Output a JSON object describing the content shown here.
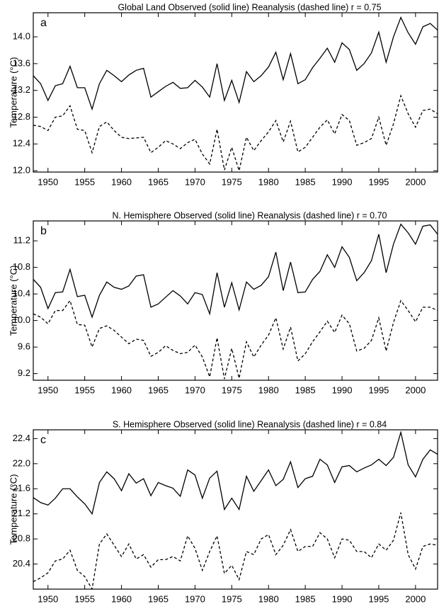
{
  "chart_data": [
    {
      "type": "line",
      "title": "Global Land   Observed (solid line)  Reanalysis (dashed line)  r =  0.75",
      "label": "a",
      "ylabel": "Temperature (°C)",
      "x": [
        1948,
        1949,
        1950,
        1951,
        1952,
        1953,
        1954,
        1955,
        1956,
        1957,
        1958,
        1959,
        1960,
        1961,
        1962,
        1963,
        1964,
        1965,
        1966,
        1967,
        1968,
        1969,
        1970,
        1971,
        1972,
        1973,
        1974,
        1975,
        1976,
        1977,
        1978,
        1979,
        1980,
        1981,
        1982,
        1983,
        1984,
        1985,
        1986,
        1987,
        1988,
        1989,
        1990,
        1991,
        1992,
        1993,
        1994,
        1995,
        1996,
        1997,
        1998,
        1999,
        2000,
        2001,
        2002,
        2003
      ],
      "xlim": [
        1948,
        2003
      ],
      "xticks": [
        1950,
        1955,
        1960,
        1965,
        1970,
        1975,
        1980,
        1985,
        1990,
        1995,
        2000
      ],
      "ylim": [
        11.98,
        14.36
      ],
      "yticks": [
        {
          "value": 12,
          "label": "12.0"
        },
        12.4,
        12.8,
        13.2,
        13.6,
        {
          "value": 14,
          "label": "14.0"
        }
      ],
      "series": [
        {
          "color": "#000000",
          "dashed": false,
          "values": [
            13.42,
            13.3,
            13.05,
            13.27,
            13.3,
            13.56,
            13.24,
            13.24,
            12.92,
            13.3,
            13.5,
            13.42,
            13.33,
            13.43,
            13.5,
            13.53,
            13.1,
            13.18,
            13.26,
            13.32,
            13.23,
            13.24,
            13.35,
            13.25,
            13.1,
            13.6,
            13.05,
            13.35,
            13.02,
            13.48,
            13.33,
            13.42,
            13.55,
            13.77,
            13.36,
            13.75,
            13.3,
            13.36,
            13.54,
            13.68,
            13.83,
            13.62,
            13.91,
            13.81,
            13.5,
            13.6,
            13.76,
            14.07,
            13.62,
            14.0,
            14.29,
            14.06,
            13.89,
            14.15,
            14.2,
            14.1
          ]
        },
        {
          "color": "#000000",
          "dashed": true,
          "values": [
            12.68,
            12.66,
            12.6,
            12.8,
            12.82,
            12.97,
            12.62,
            12.6,
            12.27,
            12.66,
            12.73,
            12.6,
            12.5,
            12.48,
            12.49,
            12.5,
            12.27,
            12.35,
            12.45,
            12.4,
            12.33,
            12.42,
            12.47,
            12.25,
            12.1,
            12.62,
            12.01,
            12.35,
            12.0,
            12.5,
            12.3,
            12.45,
            12.58,
            12.75,
            12.43,
            12.74,
            12.28,
            12.35,
            12.5,
            12.65,
            12.76,
            12.55,
            12.84,
            12.75,
            12.38,
            12.42,
            12.48,
            12.8,
            12.38,
            12.7,
            13.12,
            12.85,
            12.65,
            12.9,
            12.92,
            12.85
          ]
        }
      ]
    },
    {
      "type": "line",
      "title": "N. Hemisphere   Observed (solid line)  Reanalysis (dashed line)  r =  0.70",
      "label": "b",
      "ylabel": "Temperature (°C)",
      "x": [
        1948,
        1949,
        1950,
        1951,
        1952,
        1953,
        1954,
        1955,
        1956,
        1957,
        1958,
        1959,
        1960,
        1961,
        1962,
        1963,
        1964,
        1965,
        1966,
        1967,
        1968,
        1969,
        1970,
        1971,
        1972,
        1973,
        1974,
        1975,
        1976,
        1977,
        1978,
        1979,
        1980,
        1981,
        1982,
        1983,
        1984,
        1985,
        1986,
        1987,
        1988,
        1989,
        1990,
        1991,
        1992,
        1993,
        1994,
        1995,
        1996,
        1997,
        1998,
        1999,
        2000,
        2001,
        2002,
        2003
      ],
      "xlim": [
        1948,
        2003
      ],
      "xticks": [
        1950,
        1955,
        1960,
        1965,
        1970,
        1975,
        1980,
        1985,
        1990,
        1995,
        2000
      ],
      "ylim": [
        9.1,
        11.5
      ],
      "yticks": [
        9.2,
        9.6,
        {
          "value": 10,
          "label": "10.0"
        },
        10.4,
        10.8,
        11.2
      ],
      "series": [
        {
          "color": "#000000",
          "dashed": false,
          "values": [
            10.62,
            10.5,
            10.18,
            10.42,
            10.43,
            10.77,
            10.36,
            10.38,
            10.05,
            10.38,
            10.58,
            10.5,
            10.47,
            10.52,
            10.67,
            10.69,
            10.2,
            10.25,
            10.35,
            10.45,
            10.37,
            10.25,
            10.42,
            10.39,
            10.1,
            10.72,
            10.2,
            10.57,
            10.16,
            10.58,
            10.47,
            10.53,
            10.66,
            11.03,
            10.45,
            10.88,
            10.42,
            10.43,
            10.62,
            10.74,
            10.99,
            10.8,
            11.11,
            10.95,
            10.6,
            10.72,
            10.9,
            11.3,
            10.72,
            11.15,
            11.45,
            11.32,
            11.15,
            11.42,
            11.44,
            11.3
          ]
        },
        {
          "color": "#000000",
          "dashed": true,
          "values": [
            10.1,
            10.05,
            9.95,
            10.15,
            10.15,
            10.3,
            9.94,
            9.93,
            9.6,
            9.88,
            9.92,
            9.85,
            9.75,
            9.65,
            9.72,
            9.7,
            9.46,
            9.52,
            9.62,
            9.55,
            9.5,
            9.52,
            9.63,
            9.45,
            9.15,
            9.74,
            9.12,
            9.58,
            9.13,
            9.68,
            9.45,
            9.63,
            9.78,
            10.04,
            9.57,
            9.9,
            9.39,
            9.5,
            9.68,
            9.83,
            9.99,
            9.82,
            10.08,
            9.95,
            9.54,
            9.58,
            9.7,
            10.04,
            9.54,
            9.97,
            10.3,
            10.15,
            9.98,
            10.2,
            10.2,
            10.15
          ]
        }
      ]
    },
    {
      "type": "line",
      "title": "S. Hemisphere   Observed (solid line)  Reanalysis (dashed line)  r =  0.84",
      "label": "c",
      "ylabel": "Temperature (°C)",
      "x": [
        1948,
        1949,
        1950,
        1951,
        1952,
        1953,
        1954,
        1955,
        1956,
        1957,
        1958,
        1959,
        1960,
        1961,
        1962,
        1963,
        1964,
        1965,
        1966,
        1967,
        1968,
        1969,
        1970,
        1971,
        1972,
        1973,
        1974,
        1975,
        1976,
        1977,
        1978,
        1979,
        1980,
        1981,
        1982,
        1983,
        1984,
        1985,
        1986,
        1987,
        1988,
        1989,
        1990,
        1991,
        1992,
        1993,
        1994,
        1995,
        1996,
        1997,
        1998,
        1999,
        2000,
        2001,
        2002,
        2003
      ],
      "xlim": [
        1948,
        2003
      ],
      "xticks": [
        1950,
        1955,
        1960,
        1965,
        1970,
        1975,
        1980,
        1985,
        1990,
        1995,
        2000
      ],
      "ylim": [
        20.0,
        22.54
      ],
      "yticks": [
        20.4,
        20.8,
        21.2,
        21.6,
        {
          "value": 22,
          "label": "22.0"
        },
        22.4
      ],
      "series": [
        {
          "color": "#000000",
          "dashed": false,
          "values": [
            21.46,
            21.38,
            21.34,
            21.45,
            21.6,
            21.6,
            21.47,
            21.36,
            21.2,
            21.7,
            21.87,
            21.76,
            21.57,
            21.84,
            21.69,
            21.76,
            21.49,
            21.7,
            21.65,
            21.61,
            21.48,
            21.9,
            21.82,
            21.45,
            21.77,
            21.88,
            21.27,
            21.45,
            21.27,
            21.8,
            21.56,
            21.73,
            21.9,
            21.65,
            21.75,
            22.03,
            21.62,
            21.76,
            21.8,
            22.07,
            21.98,
            21.7,
            21.95,
            21.97,
            21.87,
            21.93,
            21.98,
            22.07,
            21.97,
            22.1,
            22.5,
            21.98,
            21.79,
            22.07,
            22.22,
            22.15
          ]
        },
        {
          "color": "#000000",
          "dashed": true,
          "values": [
            20.12,
            20.18,
            20.26,
            20.45,
            20.48,
            20.62,
            20.3,
            20.2,
            20.0,
            20.72,
            20.88,
            20.7,
            20.52,
            20.72,
            20.48,
            20.55,
            20.35,
            20.47,
            20.47,
            20.52,
            20.45,
            20.85,
            20.65,
            20.3,
            20.6,
            20.85,
            20.25,
            20.38,
            20.15,
            20.6,
            20.55,
            20.8,
            20.87,
            20.55,
            20.7,
            20.95,
            20.6,
            20.68,
            20.68,
            20.9,
            20.8,
            20.5,
            20.8,
            20.78,
            20.6,
            20.6,
            20.5,
            20.72,
            20.62,
            20.78,
            21.22,
            20.55,
            20.32,
            20.68,
            20.72,
            20.7
          ]
        }
      ]
    }
  ]
}
